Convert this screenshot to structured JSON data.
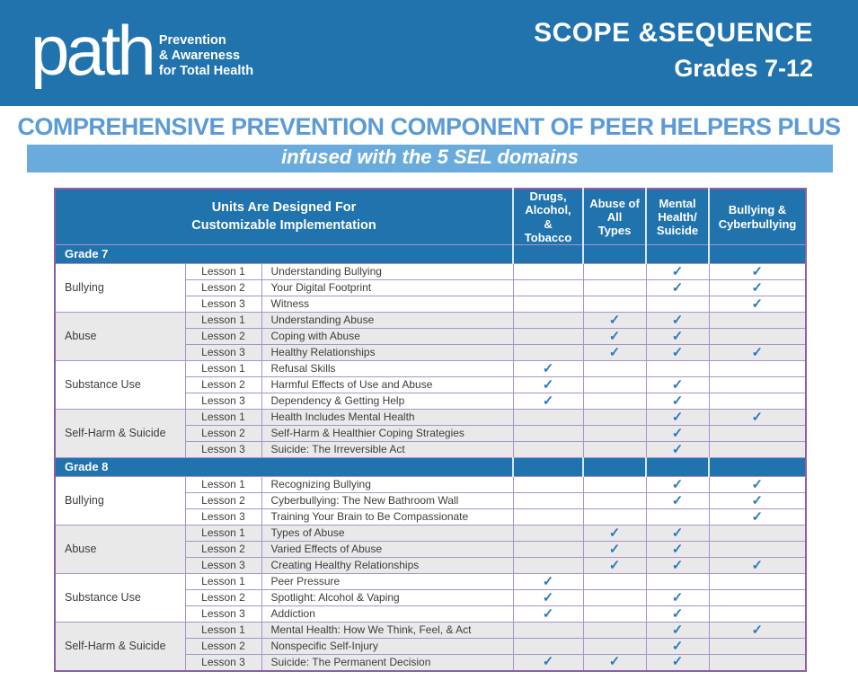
{
  "brand": {
    "logo": "path",
    "tagline": [
      "Prevention",
      "& Awareness",
      "for Total Health"
    ],
    "doc_title": "SCOPE &SEQUENCE",
    "doc_subtitle": "Grades 7-12"
  },
  "banner": {
    "title": "COMPREHENSIVE PREVENTION COMPONENT OF PEER HELPERS PLUS",
    "subtitle": "infused with the 5 SEL domains"
  },
  "table": {
    "units_header": [
      "Units Are Designed For",
      "Customizable Implementation"
    ],
    "domains": [
      {
        "key": "drugs-alcohol-tobacco",
        "label": [
          "Drugs,",
          "Alcohol, &",
          "Tobacco"
        ]
      },
      {
        "key": "abuse-of-all-types",
        "label": [
          "Abuse of",
          "All Types"
        ]
      },
      {
        "key": "mental-health-suicide",
        "label": [
          "Mental",
          "Health/",
          "Suicide"
        ]
      },
      {
        "key": "bullying-cyberbullying",
        "label": [
          "Bullying &",
          "Cyberbullying"
        ]
      }
    ],
    "check_glyph": "✓",
    "grades": [
      {
        "label": "Grade 7",
        "units": [
          {
            "name": "Bullying",
            "shaded": false,
            "lessons": [
              {
                "lesson": "Lesson 1",
                "title": "Understanding Bullying",
                "checks": [
                  0,
                  0,
                  1,
                  1
                ]
              },
              {
                "lesson": "Lesson 2",
                "title": "Your Digital Footprint",
                "checks": [
                  0,
                  0,
                  1,
                  1
                ]
              },
              {
                "lesson": "Lesson 3",
                "title": "Witness",
                "checks": [
                  0,
                  0,
                  0,
                  1
                ]
              }
            ]
          },
          {
            "name": "Abuse",
            "shaded": true,
            "lessons": [
              {
                "lesson": "Lesson 1",
                "title": "Understanding Abuse",
                "checks": [
                  0,
                  1,
                  1,
                  0
                ]
              },
              {
                "lesson": "Lesson 2",
                "title": "Coping with Abuse",
                "checks": [
                  0,
                  1,
                  1,
                  0
                ]
              },
              {
                "lesson": "Lesson 3",
                "title": "Healthy Relationships",
                "checks": [
                  0,
                  1,
                  1,
                  1
                ]
              }
            ]
          },
          {
            "name": "Substance Use",
            "shaded": false,
            "lessons": [
              {
                "lesson": "Lesson 1",
                "title": "Refusal Skills",
                "checks": [
                  1,
                  0,
                  0,
                  0
                ]
              },
              {
                "lesson": "Lesson 2",
                "title": "Harmful Effects of Use and Abuse",
                "checks": [
                  1,
                  0,
                  1,
                  0
                ]
              },
              {
                "lesson": "Lesson 3",
                "title": "Dependency & Getting Help",
                "checks": [
                  1,
                  0,
                  1,
                  0
                ]
              }
            ]
          },
          {
            "name": "Self-Harm & Suicide",
            "shaded": true,
            "lessons": [
              {
                "lesson": "Lesson 1",
                "title": "Health Includes Mental Health",
                "checks": [
                  0,
                  0,
                  1,
                  1
                ]
              },
              {
                "lesson": "Lesson 2",
                "title": "Self-Harm & Healthier Coping Strategies",
                "checks": [
                  0,
                  0,
                  1,
                  0
                ]
              },
              {
                "lesson": "Lesson 3",
                "title": "Suicide: The Irreversible Act",
                "checks": [
                  0,
                  0,
                  1,
                  0
                ]
              }
            ]
          }
        ]
      },
      {
        "label": "Grade 8",
        "units": [
          {
            "name": "Bullying",
            "shaded": false,
            "lessons": [
              {
                "lesson": "Lesson 1",
                "title": "Recognizing Bullying",
                "checks": [
                  0,
                  0,
                  1,
                  1
                ]
              },
              {
                "lesson": "Lesson 2",
                "title": "Cyberbullying: The New Bathroom Wall",
                "checks": [
                  0,
                  0,
                  1,
                  1
                ]
              },
              {
                "lesson": "Lesson 3",
                "title": "Training Your Brain to Be Compassionate",
                "checks": [
                  0,
                  0,
                  0,
                  1
                ]
              }
            ]
          },
          {
            "name": "Abuse",
            "shaded": true,
            "lessons": [
              {
                "lesson": "Lesson 1",
                "title": "Types of Abuse",
                "checks": [
                  0,
                  1,
                  1,
                  0
                ]
              },
              {
                "lesson": "Lesson 2",
                "title": "Varied Effects of Abuse",
                "checks": [
                  0,
                  1,
                  1,
                  0
                ]
              },
              {
                "lesson": "Lesson 3",
                "title": "Creating Healthy Relationships",
                "checks": [
                  0,
                  1,
                  1,
                  1
                ]
              }
            ]
          },
          {
            "name": "Substance Use",
            "shaded": false,
            "lessons": [
              {
                "lesson": "Lesson 1",
                "title": "Peer Pressure",
                "checks": [
                  1,
                  0,
                  0,
                  0
                ]
              },
              {
                "lesson": "Lesson 2",
                "title": "Spotlight: Alcohol & Vaping",
                "checks": [
                  1,
                  0,
                  1,
                  0
                ]
              },
              {
                "lesson": "Lesson 3",
                "title": "Addiction",
                "checks": [
                  1,
                  0,
                  1,
                  0
                ]
              }
            ]
          },
          {
            "name": "Self-Harm & Suicide",
            "shaded": true,
            "lessons": [
              {
                "lesson": "Lesson 1",
                "title": "Mental Health: How We Think, Feel, & Act",
                "checks": [
                  0,
                  0,
                  1,
                  1
                ]
              },
              {
                "lesson": "Lesson 2",
                "title": "Nonspecific Self-Injury",
                "checks": [
                  0,
                  0,
                  1,
                  0
                ]
              },
              {
                "lesson": "Lesson 3",
                "title": "Suicide: The Permanent Decision",
                "checks": [
                  1,
                  1,
                  1,
                  0
                ]
              }
            ]
          }
        ]
      }
    ]
  },
  "colors": {
    "band_blue": "#2173ae",
    "title_blue": "#5b9bd5",
    "banner_blue": "#6aabde",
    "check_blue": "#2b7bbd",
    "row_gray": "#e9e9ea",
    "grid_purple": "#a893cb",
    "border_purple": "#8a5fa8"
  }
}
